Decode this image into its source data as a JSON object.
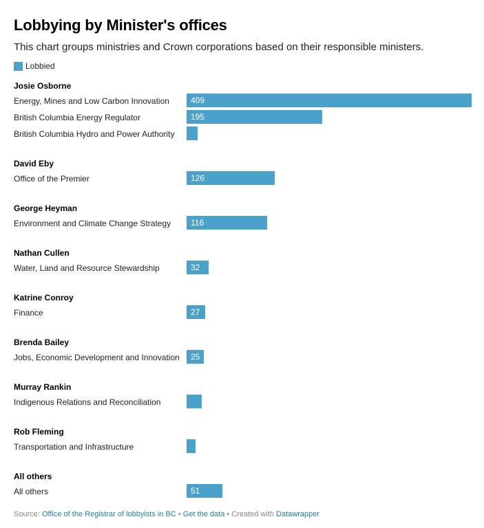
{
  "colors": {
    "bar": "#4aa1c9"
  },
  "chart_data": {
    "type": "bar",
    "orientation": "horizontal",
    "title": "Lobbying by Minister's offices",
    "subtitle": "This chart groups ministries and Crown corporations based on their responsible ministers.",
    "legend": {
      "placement": "top-left",
      "items": [
        "Lobbied"
      ]
    },
    "series_name": "Lobbied",
    "xlim": [
      0,
      409
    ],
    "groups": [
      {
        "name": "Josie Osborne",
        "rows": [
          {
            "label": "Energy, Mines and Low Carbon Innovation",
            "value": 409,
            "value_label": "409"
          },
          {
            "label": "British Columbia Energy Regulator",
            "value": 195,
            "value_label": "195"
          },
          {
            "label": "British Columbia Hydro and Power Authority",
            "value": 16,
            "value_label": ""
          }
        ]
      },
      {
        "name": "David Eby",
        "rows": [
          {
            "label": "Office of the Premier",
            "value": 126,
            "value_label": "126"
          }
        ]
      },
      {
        "name": "George Heyman",
        "rows": [
          {
            "label": "Environment and Climate Change Strategy",
            "value": 116,
            "value_label": "116"
          }
        ]
      },
      {
        "name": "Nathan Cullen",
        "rows": [
          {
            "label": "Water, Land and Resource Stewardship",
            "value": 32,
            "value_label": "32"
          }
        ]
      },
      {
        "name": "Katrine Conroy",
        "rows": [
          {
            "label": "Finance",
            "value": 27,
            "value_label": "27"
          }
        ]
      },
      {
        "name": "Brenda Bailey",
        "rows": [
          {
            "label": "Jobs, Economic Development and Innovation",
            "value": 25,
            "value_label": "25"
          }
        ]
      },
      {
        "name": "Murray Rankin",
        "rows": [
          {
            "label": "Indigenous Relations and Reconciliation",
            "value": 22,
            "value_label": ""
          }
        ]
      },
      {
        "name": "Rob Fleming",
        "rows": [
          {
            "label": "Transportation and Infrastructure",
            "value": 13,
            "value_label": ""
          }
        ]
      },
      {
        "name": "All others",
        "rows": [
          {
            "label": "All others",
            "value": 51,
            "value_label": "51"
          }
        ]
      }
    ]
  },
  "footer": {
    "source_prefix": "Source: ",
    "source_link": "Office of the Registrar of lobbyists in BC",
    "sep1": " • ",
    "data_link": "Get the data",
    "created_prefix": " • Created with ",
    "created_link": "Datawrapper"
  }
}
